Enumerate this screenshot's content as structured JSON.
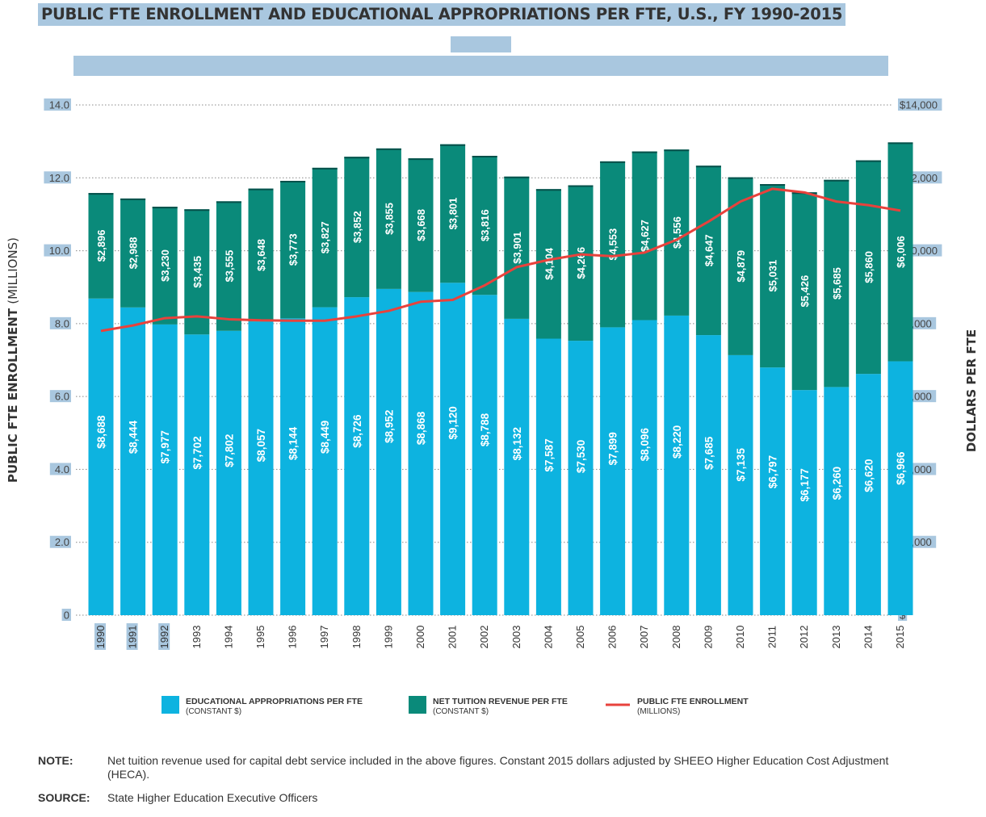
{
  "title": "PUBLIC FTE ENROLLMENT AND EDUCATIONAL APPROPRIATIONS PER FTE, U.S., FY 1990-2015",
  "chart_data": {
    "type": "bar",
    "stacked": true,
    "categories": [
      "1990",
      "1991",
      "1992",
      "1993",
      "1994",
      "1995",
      "1996",
      "1997",
      "1998",
      "1999",
      "2000",
      "2001",
      "2002",
      "2003",
      "2004",
      "2005",
      "2006",
      "2007",
      "2008",
      "2009",
      "2010",
      "2011",
      "2012",
      "2013",
      "2014",
      "2015"
    ],
    "series": [
      {
        "name": "EDUCATIONAL APPROPRIATIONS PER FTE",
        "sublabel": "(CONSTANT $)",
        "axis": "right",
        "color": "#0db3e0",
        "values": [
          8688,
          8444,
          7977,
          7702,
          7802,
          8057,
          8144,
          8449,
          8726,
          8952,
          8868,
          9120,
          8788,
          8132,
          7587,
          7530,
          7899,
          8096,
          8220,
          7685,
          7135,
          6797,
          6177,
          6260,
          6620,
          6966
        ],
        "labels": [
          "$8,688",
          "$8,444",
          "$7,977",
          "$7,702",
          "$7,802",
          "$8,057",
          "$8,144",
          "$8,449",
          "$8,726",
          "$8,952",
          "$8,868",
          "$9,120",
          "$8,788",
          "$8,132",
          "$7,587",
          "$7,530",
          "$7,899",
          "$8,096",
          "$8,220",
          "$7,685",
          "$7,135",
          "$6,797",
          "$6,177",
          "$6,260",
          "$6,620",
          "$6,966"
        ]
      },
      {
        "name": "NET TUITION REVENUE PER FTE",
        "sublabel": "(CONSTANT $)",
        "axis": "right",
        "color": "#0a8a7a",
        "values": [
          2896,
          2988,
          3230,
          3435,
          3555,
          3648,
          3773,
          3827,
          3852,
          3855,
          3668,
          3801,
          3816,
          3901,
          4104,
          4266,
          4553,
          4627,
          4556,
          4647,
          4879,
          5031,
          5426,
          5685,
          5860,
          6006
        ],
        "labels": [
          "$2,896",
          "$2,988",
          "$3,230",
          "$3,435",
          "$3,555",
          "$3,648",
          "$3,773",
          "$3,827",
          "$3,852",
          "$3,855",
          "$3,668",
          "$3,801",
          "$3,816",
          "$3,901",
          "$4,104",
          "$4,266",
          "$4,553",
          "$4,627",
          "$4,556",
          "$4,647",
          "$4,879",
          "$5,031",
          "$5,426",
          "$5,685",
          "$5,860",
          "$6,006"
        ]
      },
      {
        "name": "PUBLIC FTE ENROLLMENT",
        "sublabel": "(MILLIONS)",
        "type": "line",
        "axis": "left",
        "color": "#e8423c",
        "values": [
          7.8,
          7.95,
          8.15,
          8.2,
          8.12,
          8.09,
          8.08,
          8.08,
          8.2,
          8.35,
          8.6,
          8.65,
          9.05,
          9.55,
          9.75,
          9.9,
          9.85,
          9.95,
          10.3,
          10.8,
          11.35,
          11.7,
          11.6,
          11.35,
          11.25,
          11.1
        ]
      }
    ],
    "yleft": {
      "label_bold": "PUBLIC FTE ENROLLMENT",
      "label_light": "(MILLIONS)",
      "ylim": [
        0,
        14
      ],
      "ticks": [
        "0",
        "2.0",
        "4.0",
        "6.0",
        "8.0",
        "10.0",
        "12.0",
        "14.0"
      ]
    },
    "yright": {
      "label": "DOLLARS PER FTE",
      "ylim": [
        0,
        14000
      ],
      "ticks": [
        "$",
        "$2,000",
        "$4,000",
        "$6,000",
        "$8,000",
        "$10,000",
        "$12,000",
        "$14,000"
      ]
    },
    "grid": "dotted-horizontal",
    "legend": "bottom-center",
    "colors": {
      "approp": "#0db3e0",
      "tuition": "#0a8a7a",
      "enroll": "#e8423c",
      "highlight": "#a9c7df"
    }
  },
  "notes": {
    "note_label": "NOTE:",
    "note_text": "Net tuition revenue used for capital debt service  included in the above figures. Constant 2015 dollars adjusted by SHEEO Higher Education Cost Adjustment (HECA).",
    "source_label": "SOURCE:",
    "source_text": "State Higher Education Executive Officers"
  }
}
